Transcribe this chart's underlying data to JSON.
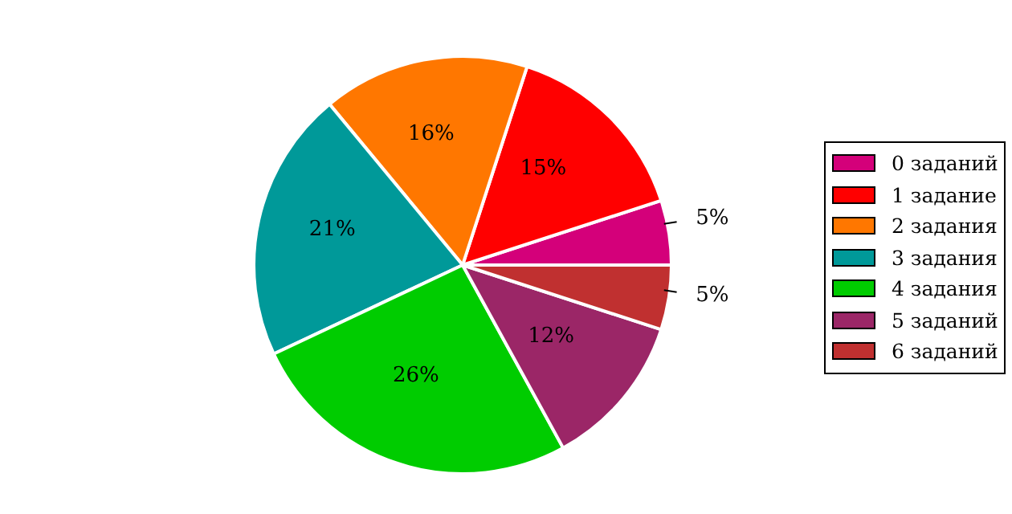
{
  "chart_data": {
    "type": "pie",
    "categories": [
      "0 заданий",
      "1 задание",
      "2 задания",
      "3 задания",
      "4 задания",
      "5 заданий",
      "6 заданий"
    ],
    "values": [
      5,
      15,
      16,
      21,
      26,
      12,
      5
    ],
    "value_labels": [
      "5%",
      "15%",
      "16%",
      "21%",
      "26%",
      "12%",
      "5%"
    ],
    "colors": [
      "#d4007a",
      "#ff0000",
      "#ff7700",
      "#009999",
      "#00cc00",
      "#9b2667",
      "#c03030"
    ],
    "legend": "right"
  }
}
